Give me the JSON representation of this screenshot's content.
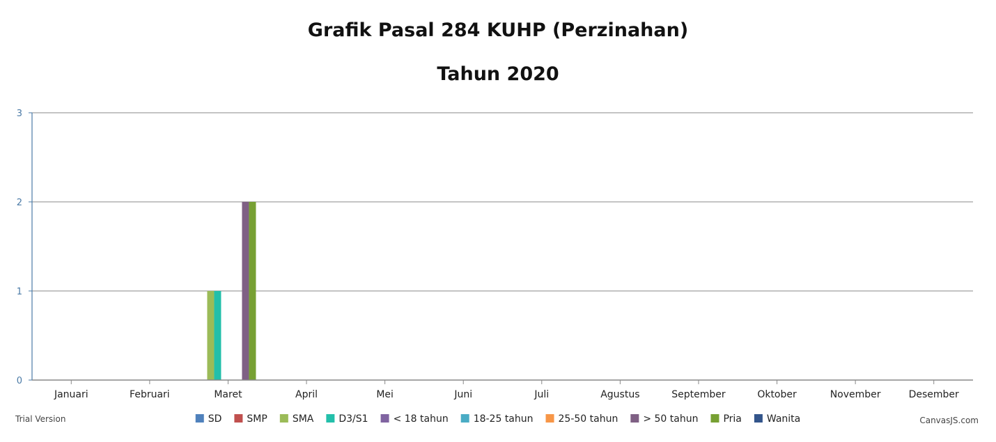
{
  "chart_data": {
    "type": "bar",
    "title": "Grafik Pasal 284 KUHP (Perzinahan)",
    "subtitle": "Tahun 2020",
    "categories": [
      "Januari",
      "Februari",
      "Maret",
      "April",
      "Mei",
      "Juni",
      "Juli",
      "Agustus",
      "September",
      "Oktober",
      "November",
      "Desember"
    ],
    "ylim": [
      0,
      3
    ],
    "yticks": [
      0,
      1,
      2,
      3
    ],
    "grid": true,
    "legend_position": "bottom",
    "series": [
      {
        "name": "SD",
        "color": "#4f81bc",
        "values": [
          0,
          0,
          0,
          0,
          0,
          0,
          0,
          0,
          0,
          0,
          0,
          0
        ]
      },
      {
        "name": "SMP",
        "color": "#c0504e",
        "values": [
          0,
          0,
          0,
          0,
          0,
          0,
          0,
          0,
          0,
          0,
          0,
          0
        ]
      },
      {
        "name": "SMA",
        "color": "#9bbb58",
        "values": [
          0,
          0,
          1,
          0,
          0,
          0,
          0,
          0,
          0,
          0,
          0,
          0
        ]
      },
      {
        "name": "D3/S1",
        "color": "#23bfaa",
        "values": [
          0,
          0,
          1,
          0,
          0,
          0,
          0,
          0,
          0,
          0,
          0,
          0
        ]
      },
      {
        "name": "< 18 tahun",
        "color": "#8064a1",
        "values": [
          0,
          0,
          0,
          0,
          0,
          0,
          0,
          0,
          0,
          0,
          0,
          0
        ]
      },
      {
        "name": "18-25 tahun",
        "color": "#4aacc5",
        "values": [
          0,
          0,
          0,
          0,
          0,
          0,
          0,
          0,
          0,
          0,
          0,
          0
        ]
      },
      {
        "name": "25-50 tahun",
        "color": "#f79647",
        "values": [
          0,
          0,
          0,
          0,
          0,
          0,
          0,
          0,
          0,
          0,
          0,
          0
        ]
      },
      {
        "name": "> 50 tahun",
        "color": "#7f6084",
        "values": [
          0,
          0,
          2,
          0,
          0,
          0,
          0,
          0,
          0,
          0,
          0,
          0
        ]
      },
      {
        "name": "Pria",
        "color": "#77a033",
        "values": [
          0,
          0,
          2,
          0,
          0,
          0,
          0,
          0,
          0,
          0,
          0,
          0
        ]
      },
      {
        "name": "Wanita",
        "color": "#33558b",
        "values": [
          0,
          0,
          0,
          0,
          0,
          0,
          0,
          0,
          0,
          0,
          0,
          0
        ]
      }
    ]
  },
  "footer": {
    "trial_text": "Trial Version",
    "credit_text": "CanvasJS.com"
  },
  "colors": {
    "axis": "#4a7aa6",
    "grid": "#a0a0a0"
  }
}
